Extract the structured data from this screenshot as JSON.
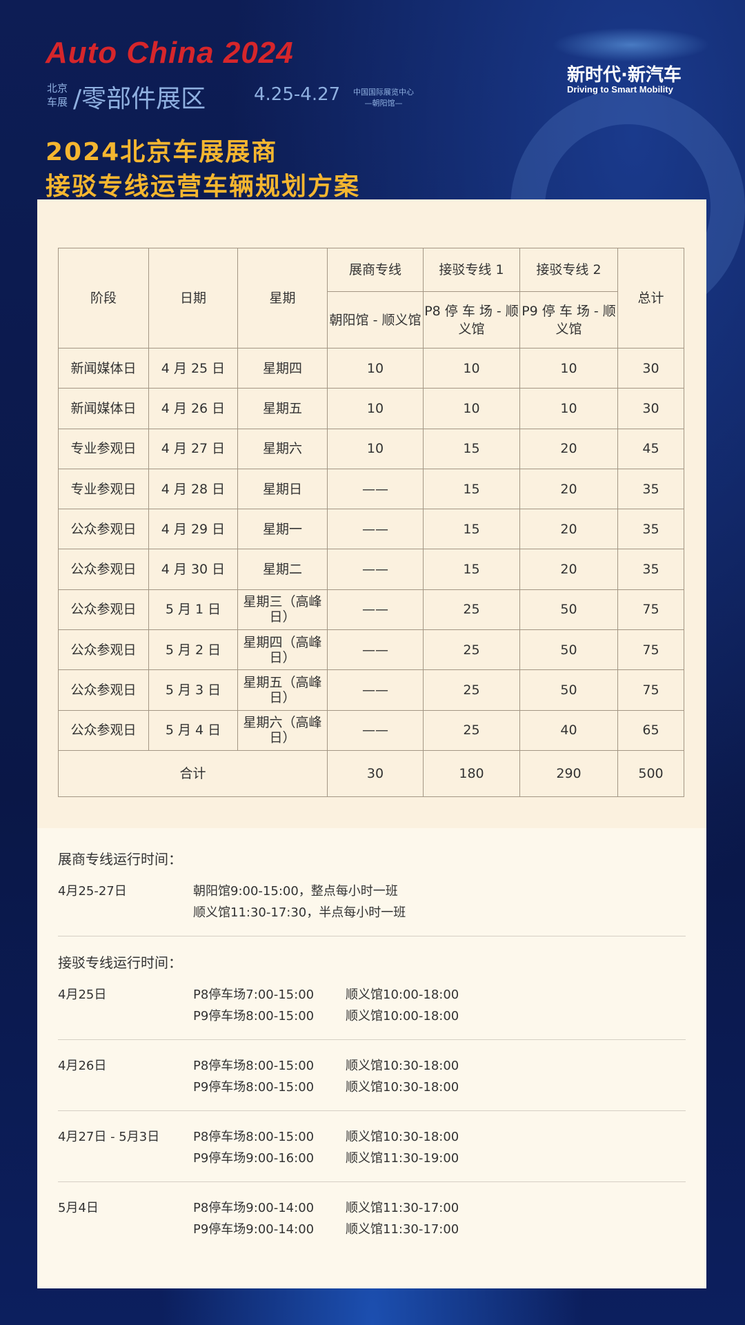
{
  "header": {
    "logo": "Auto China 2024",
    "show_small": "北京车展",
    "area": "/零部件展区",
    "dates": "4.25-4.27",
    "venue": "中国国际展览中心",
    "venue_sub": "—朝阳馆—",
    "slogan": "新时代·新汽车",
    "slogan_en": "Driving to Smart Mobility",
    "title_line1": "2024北京车展展商",
    "title_line2": "接驳专线运营车辆规划方案"
  },
  "table": {
    "headers": {
      "stage": "阶段",
      "date": "日期",
      "weekday": "星期",
      "line1": "展商专线",
      "line2": "接驳专线 1",
      "line3": "接驳专线 2",
      "total": "总计",
      "route1": "朝阳馆 - 顺义馆",
      "route2": "P8 停 车 场 - 顺义馆",
      "route3": "P9 停 车 场 - 顺义馆"
    },
    "rows": [
      [
        "新闻媒体日",
        "4 月 25 日",
        "星期四",
        "10",
        "10",
        "10",
        "30"
      ],
      [
        "新闻媒体日",
        "4 月 26 日",
        "星期五",
        "10",
        "10",
        "10",
        "30"
      ],
      [
        "专业参观日",
        "4 月 27 日",
        "星期六",
        "10",
        "15",
        "20",
        "45"
      ],
      [
        "专业参观日",
        "4 月 28 日",
        "星期日",
        "——",
        "15",
        "20",
        "35"
      ],
      [
        "公众参观日",
        "4 月 29 日",
        "星期一",
        "——",
        "15",
        "20",
        "35"
      ],
      [
        "公众参观日",
        "4 月 30 日",
        "星期二",
        "——",
        "15",
        "20",
        "35"
      ],
      [
        "公众参观日",
        "5 月 1 日",
        "星期三（高峰日）",
        "——",
        "25",
        "50",
        "75"
      ],
      [
        "公众参观日",
        "5 月 2 日",
        "星期四（高峰日）",
        "——",
        "25",
        "50",
        "75"
      ],
      [
        "公众参观日",
        "5 月 3 日",
        "星期五（高峰日）",
        "——",
        "25",
        "50",
        "75"
      ],
      [
        "公众参观日",
        "5 月 4 日",
        "星期六（高峰日）",
        "——",
        "25",
        "40",
        "65"
      ]
    ],
    "total_row": [
      "合计",
      "30",
      "180",
      "290",
      "500"
    ]
  },
  "schedule": {
    "exhibitor_title": "展商专线运行时间：",
    "exhibitor": [
      {
        "date": "4月25-27日",
        "lines": [
          "朝阳馆9:00-15:00，整点每小时一班",
          "顺义馆11:30-17:30，半点每小时一班"
        ]
      }
    ],
    "shuttle_title": "接驳专线运行时间：",
    "shuttle": [
      {
        "date": "4月25日",
        "lines": [
          [
            "P8停车场7:00-15:00",
            "顺义馆10:00-18:00"
          ],
          [
            "P9停车场8:00-15:00",
            "顺义馆10:00-18:00"
          ]
        ]
      },
      {
        "date": "4月26日",
        "lines": [
          [
            "P8停车场8:00-15:00",
            "顺义馆10:30-18:00"
          ],
          [
            "P9停车场8:00-15:00",
            "顺义馆10:30-18:00"
          ]
        ]
      },
      {
        "date": "4月27日 - 5月3日",
        "lines": [
          [
            "P8停车场8:00-15:00",
            "顺义馆10:30-18:00"
          ],
          [
            "P9停车场9:00-16:00",
            "顺义馆11:30-19:00"
          ]
        ]
      },
      {
        "date": "5月4日",
        "lines": [
          [
            "P8停车场9:00-14:00",
            "顺义馆11:30-17:00"
          ],
          [
            "P9停车场9:00-14:00",
            "顺义馆11:30-17:00"
          ]
        ]
      }
    ]
  }
}
